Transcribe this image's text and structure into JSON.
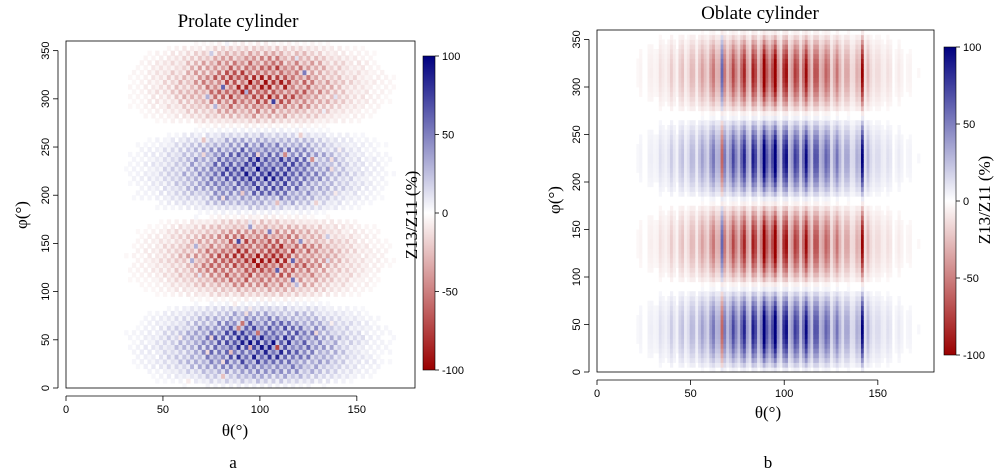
{
  "chart_data": [
    {
      "type": "heatmap",
      "panel_label": "a",
      "title": "Prolate cylinder",
      "xlabel": "θ(°)",
      "ylabel": "φ(°)",
      "xlim": [
        0,
        180
      ],
      "ylim": [
        0,
        360
      ],
      "x_ticks": [
        0,
        50,
        100,
        150
      ],
      "y_ticks": [
        0,
        50,
        100,
        150,
        200,
        250,
        300,
        350
      ],
      "colorbar": {
        "label": "Z13/Z11 (%)",
        "range": [
          -100,
          100
        ],
        "ticks": [
          -100,
          -50,
          0,
          50,
          100
        ],
        "low_color": "#9a0000",
        "mid_color": "#ffffff",
        "high_color": "#00007f"
      },
      "regions": [
        {
          "phi_range": [
            0,
            90
          ],
          "theta_range": [
            30,
            175
          ],
          "sign": "positive",
          "peak_percent": 100
        },
        {
          "phi_range": [
            90,
            180
          ],
          "theta_range": [
            30,
            175
          ],
          "sign": "negative",
          "peak_percent": -100
        },
        {
          "phi_range": [
            180,
            270
          ],
          "theta_range": [
            30,
            175
          ],
          "sign": "positive",
          "peak_percent": 100
        },
        {
          "phi_range": [
            270,
            360
          ],
          "theta_range": [
            30,
            175
          ],
          "sign": "negative",
          "peak_percent": -100
        }
      ],
      "texture": "checkerboard"
    },
    {
      "type": "heatmap",
      "panel_label": "b",
      "title": "Oblate cylinder",
      "xlabel": "θ(°)",
      "ylabel": "φ(°)",
      "xlim": [
        0,
        180
      ],
      "ylim": [
        0,
        360
      ],
      "x_ticks": [
        0,
        50,
        100,
        150
      ],
      "y_ticks": [
        0,
        50,
        100,
        150,
        200,
        250,
        300,
        350
      ],
      "colorbar": {
        "label": "Z13/Z11 (%)",
        "range": [
          -100,
          100
        ],
        "ticks": [
          -100,
          -50,
          0,
          50,
          100
        ],
        "low_color": "#9a0000",
        "mid_color": "#ffffff",
        "high_color": "#00007f"
      },
      "regions": [
        {
          "phi_range": [
            0,
            90
          ],
          "theta_range": [
            30,
            175
          ],
          "sign": "positive",
          "peak_percent": 100
        },
        {
          "phi_range": [
            90,
            180
          ],
          "theta_range": [
            30,
            175
          ],
          "sign": "negative",
          "peak_percent": -100
        },
        {
          "phi_range": [
            180,
            270
          ],
          "theta_range": [
            30,
            175
          ],
          "sign": "positive",
          "peak_percent": 100
        },
        {
          "phi_range": [
            270,
            360
          ],
          "theta_range": [
            30,
            175
          ],
          "sign": "negative",
          "peak_percent": -100
        }
      ],
      "texture": "vertical-stripes"
    }
  ]
}
